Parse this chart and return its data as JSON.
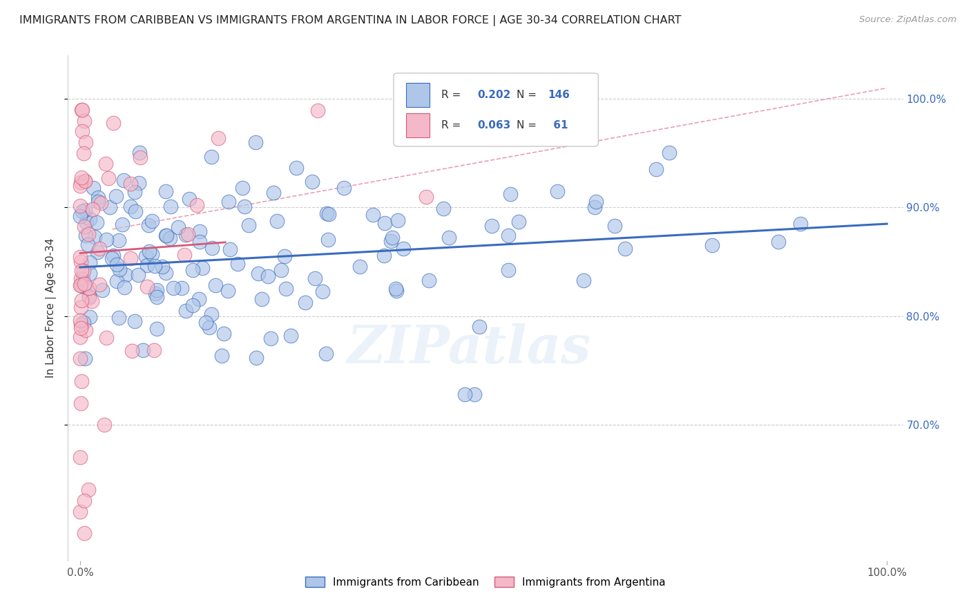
{
  "title": "IMMIGRANTS FROM CARIBBEAN VS IMMIGRANTS FROM ARGENTINA IN LABOR FORCE | AGE 30-34 CORRELATION CHART",
  "source": "Source: ZipAtlas.com",
  "ylabel": "In Labor Force | Age 30-34",
  "color_blue": "#aec6e8",
  "color_pink": "#f4b8c8",
  "line_blue": "#3a6bbf",
  "line_pink": "#d45a7a",
  "watermark": "ZIPatlas",
  "R_blue": 0.202,
  "N_blue": 146,
  "R_pink": 0.063,
  "N_pink": 61
}
